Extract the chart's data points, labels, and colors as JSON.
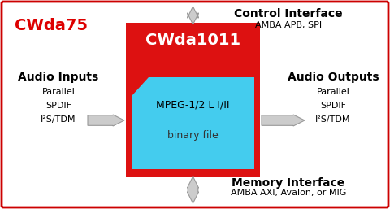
{
  "bg_color": "#ffffff",
  "outer_border_color": "#cc0000",
  "cwda75_text": "CWda75",
  "cwda75_color": "#dd0000",
  "red_box_color": "#dd1111",
  "cyan_box_color": "#44ccee",
  "cwda1011_text": "CWda1011",
  "mpeg_text": "MPEG-1/2 L I/II",
  "binary_text": "binary file",
  "ctrl_title": "Control Interface",
  "ctrl_sub": "AMBA APB, SPI",
  "mem_title": "Memory Interface",
  "mem_sub": "AMBA AXI, Avalon, or MIG",
  "audio_in_title": "Audio Inputs",
  "audio_in_lines": [
    "Parallel",
    "SPDIF",
    "I²S/TDM"
  ],
  "audio_out_title": "Audio Outputs",
  "audio_out_lines": [
    "Parallel",
    "SPDIF",
    "I²S/TDM"
  ],
  "arrow_color": "#cccccc",
  "arrow_edge_color": "#999999"
}
